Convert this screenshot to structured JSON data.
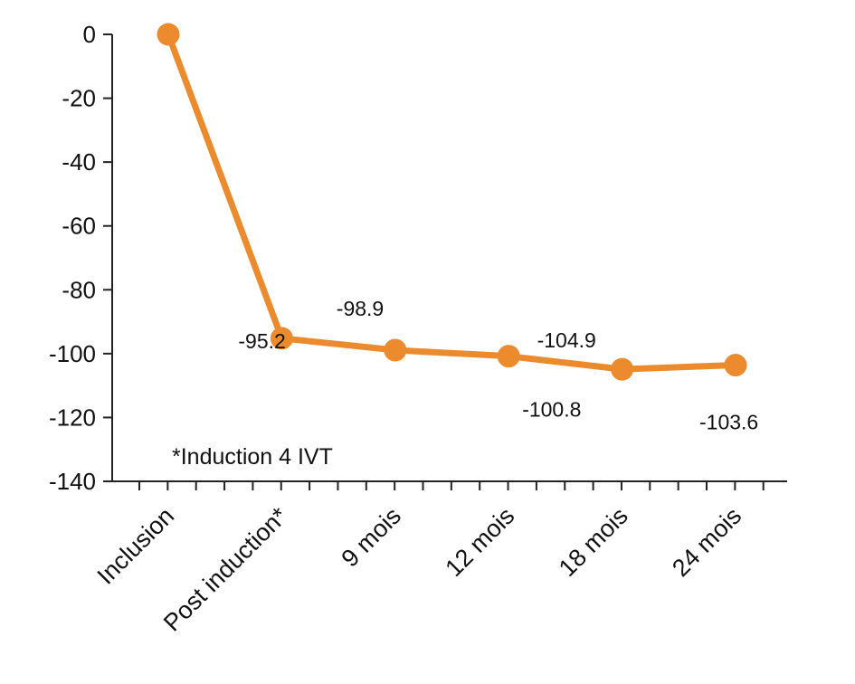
{
  "chart_data": {
    "type": "line",
    "categories": [
      "Inclusion",
      "Post induction*",
      "9 mois",
      "12 mois",
      "18 mois",
      "24 mois"
    ],
    "series": [
      {
        "values": [
          0,
          -95.2,
          -98.9,
          -100.8,
          -104.9,
          -103.6
        ]
      }
    ],
    "data_labels": [
      "",
      "-95.2",
      "-98.9",
      "-100.8",
      "-104.9",
      "-103.6"
    ],
    "ylim": [
      -140,
      0
    ],
    "yticks": [
      0,
      -20,
      -40,
      -60,
      -80,
      -100,
      -120,
      -140
    ],
    "annotation": "*Induction 4 IVT",
    "color": "#ec8a2e",
    "grid": false,
    "legend": "none"
  }
}
